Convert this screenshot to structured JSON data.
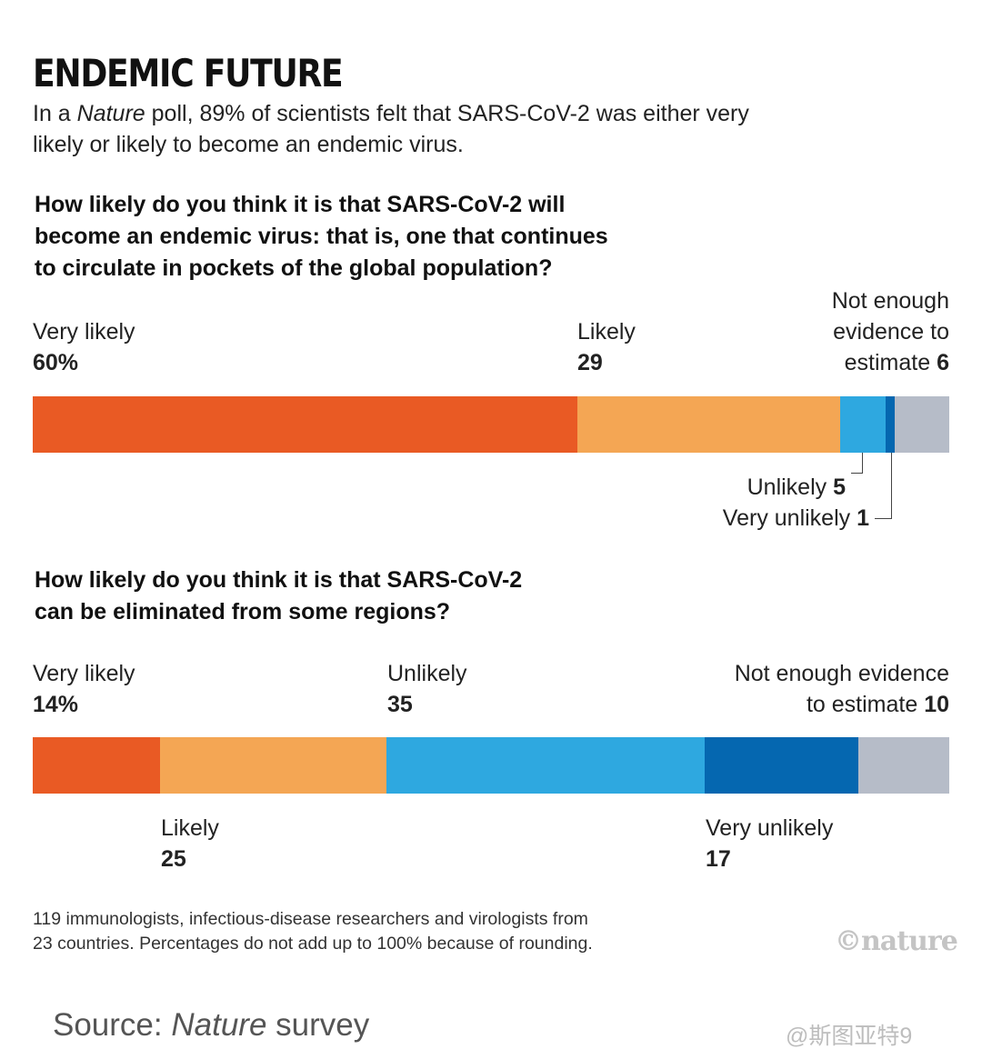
{
  "title": "ENDEMIC FUTURE",
  "subtitle_parts": [
    "In a ",
    "Nature",
    " poll, 89% of scientists felt that SARS-CoV-2 was either very likely or likely to become an endemic virus."
  ],
  "chart_data": [
    {
      "type": "bar",
      "orientation": "horizontal-stacked",
      "title": "How likely do you think it is that SARS-CoV-2 will become an endemic virus: that is, one that continues to circulate in pockets of the global population?",
      "unit": "%",
      "series": [
        {
          "name": "Very likely",
          "value": 60,
          "value_label": "60%",
          "color": "#e95a24"
        },
        {
          "name": "Likely",
          "value": 29,
          "value_label": "29",
          "color": "#f4a654"
        },
        {
          "name": "Unlikely",
          "value": 5,
          "value_label": "5",
          "color": "#2ea8e0"
        },
        {
          "name": "Very unlikely",
          "value": 1,
          "value_label": "1",
          "color": "#0567b0"
        },
        {
          "name": "Not enough evidence to estimate",
          "value": 6,
          "value_label": "6",
          "color": "#b6bcc8"
        }
      ],
      "label_lines": {
        "very_likely": "Very likely",
        "likely": "Likely",
        "not_enough_1": "Not enough",
        "not_enough_2": "evidence to",
        "not_enough_3": "estimate ",
        "unlikely": "Unlikely ",
        "very_unlikely": "Very unlikely "
      }
    },
    {
      "type": "bar",
      "orientation": "horizontal-stacked",
      "title": "How likely do you think it is that SARS-CoV-2 can be eliminated from some regions?",
      "unit": "%",
      "series": [
        {
          "name": "Very likely",
          "value": 14,
          "value_label": "14%",
          "color": "#e95a24"
        },
        {
          "name": "Likely",
          "value": 25,
          "value_label": "25",
          "color": "#f4a654"
        },
        {
          "name": "Unlikely",
          "value": 35,
          "value_label": "35",
          "color": "#2ea8e0"
        },
        {
          "name": "Very unlikely",
          "value": 17,
          "value_label": "17",
          "color": "#0567b0"
        },
        {
          "name": "Not enough evidence to estimate",
          "value": 10,
          "value_label": "10",
          "color": "#b6bcc8"
        }
      ],
      "label_lines": {
        "very_likely": "Very likely",
        "unlikely": "Unlikely",
        "not_enough_1": "Not enough evidence",
        "not_enough_2": "to estimate ",
        "likely": "Likely",
        "very_unlikely": "Very unlikely"
      }
    }
  ],
  "q1_lines": [
    "How likely do you think it is that SARS-CoV-2 will",
    "become an endemic virus: that is, one that continues",
    "to circulate in pockets of the global population?"
  ],
  "q2_lines": [
    "How likely do you think it is that SARS-CoV-2",
    "can be eliminated from some regions?"
  ],
  "footnote_lines": [
    "119 immunologists, infectious-disease researchers and virologists from",
    "23 countries. Percentages do not add up to 100% because of rounding."
  ],
  "logo": "©nature",
  "source_parts": [
    "Source: ",
    "Nature",
    " survey"
  ],
  "watermark": "@斯图亚特9"
}
